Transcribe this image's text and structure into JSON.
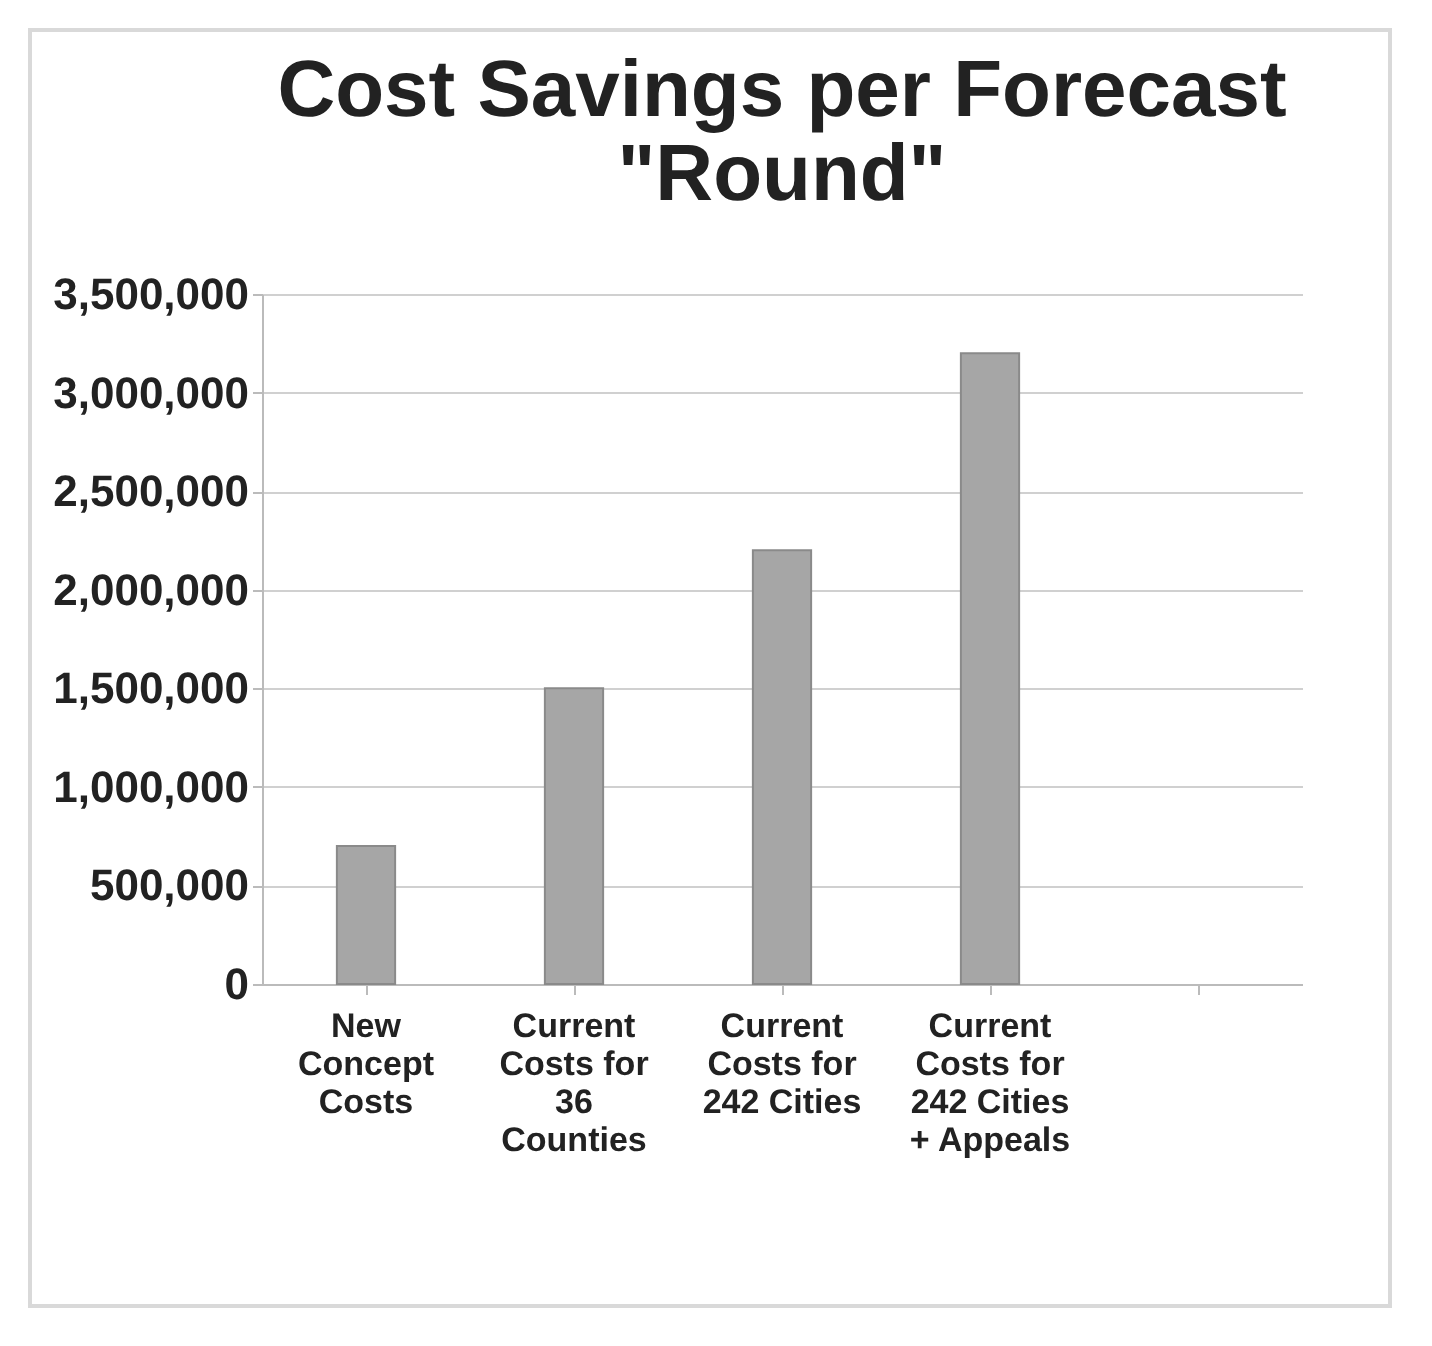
{
  "chart_data": {
    "type": "bar",
    "title": "Cost Savings per Forecast \"Round\"",
    "categories": [
      "New Concept Costs",
      "Current Costs for 36 Counties",
      "Current Costs for 242 Cities",
      "Current Costs for 242 Cities + Appeals",
      null
    ],
    "values": [
      700000,
      1500000,
      2200000,
      3200000,
      null
    ],
    "color": "#a6a6a6",
    "ylim": [
      0,
      3500000
    ],
    "yticks": [
      0,
      {
        "value": 500000,
        "label": "500,000"
      },
      {
        "value": 1000000,
        "label": "1,000,000"
      },
      {
        "value": 1500000,
        "label": "1,500,000"
      },
      {
        "value": 2000000,
        "label": "2,000,000"
      },
      {
        "value": 2500000,
        "label": "2,500,000"
      },
      {
        "value": 3000000,
        "label": "3,000,000"
      },
      {
        "value": 3500000,
        "label": "3,500,000"
      }
    ],
    "grid": "y"
  }
}
